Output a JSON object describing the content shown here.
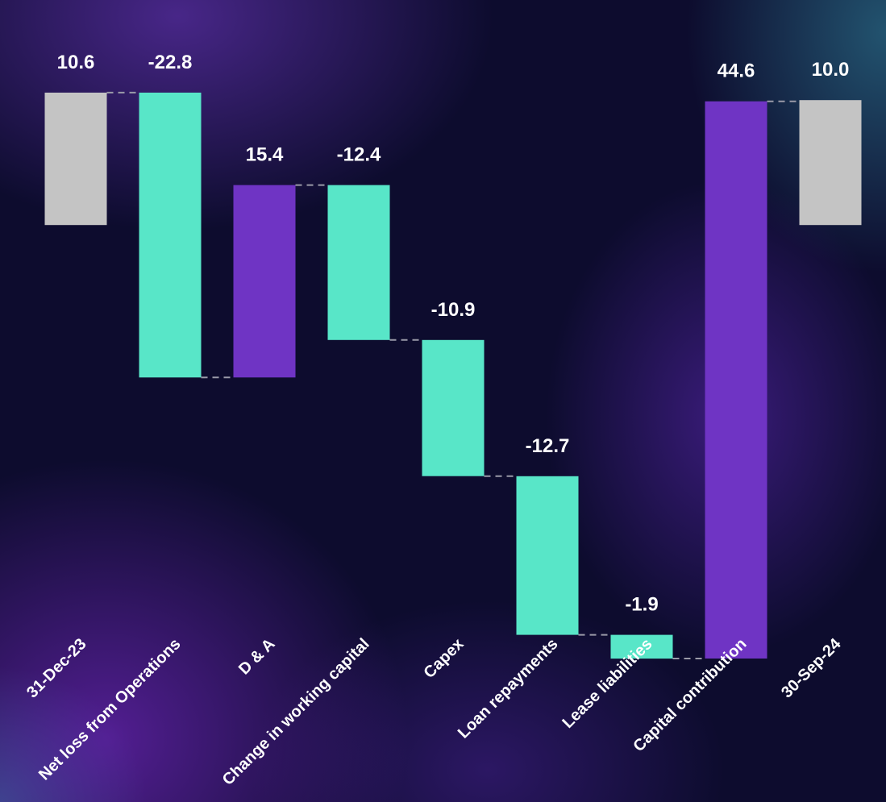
{
  "colors": {
    "total": "#c4c4c4",
    "decrease": "#58e6c8",
    "increase": "#6f34c4",
    "label": "#ffffff",
    "connector": "#9a9aa8"
  },
  "chart_data": {
    "type": "bar",
    "subtype": "waterfall",
    "title": "",
    "xlabel": "",
    "ylabel": "",
    "categories": [
      "31-Dec-23",
      "Net loss from Operations",
      "D & A",
      "Change in working capital",
      "Capex",
      "Loan repayments",
      "Lease liabilities",
      "Capital contribution",
      "30-Sep-24"
    ],
    "values": [
      10.6,
      -22.8,
      15.4,
      -12.4,
      -10.9,
      -12.7,
      -1.9,
      44.6,
      10.0
    ],
    "value_labels": [
      "10.6",
      "-22.8",
      "15.4",
      "-12.4",
      "-10.9",
      "-12.7",
      "-1.9",
      "44.6",
      "10.0"
    ],
    "kinds": [
      "total",
      "decrease",
      "increase",
      "decrease",
      "decrease",
      "decrease",
      "decrease",
      "increase",
      "total"
    ],
    "legend": "none",
    "grid": false
  }
}
